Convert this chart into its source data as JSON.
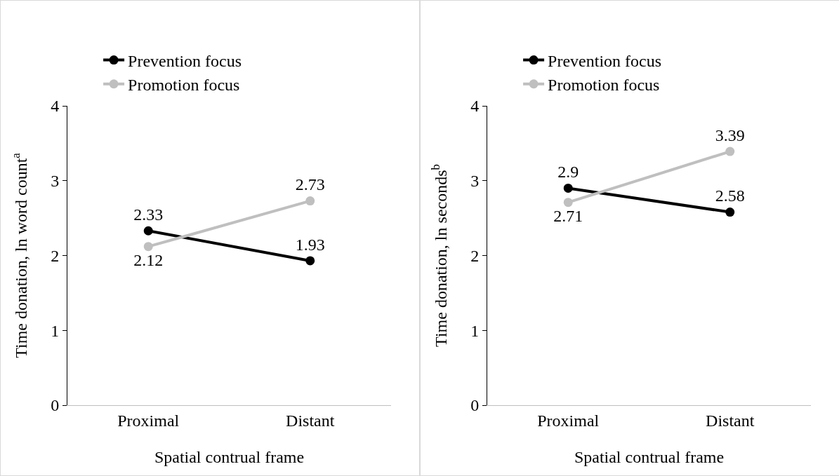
{
  "chart_data": [
    {
      "type": "line",
      "categories": [
        "Proximal",
        "Distant"
      ],
      "xlabel": "Spatial contrual frame",
      "ylabel": "Time donation, ln word count$^{a}$",
      "ylim": [
        0,
        4
      ],
      "yticks": [
        0,
        1,
        2,
        3,
        4
      ],
      "grid": false,
      "legend": "top",
      "marker": "circle",
      "data_labels": true,
      "series": [
        {
          "name": "Prevention focus",
          "color": "#000000",
          "values": [
            2.33,
            1.93
          ]
        },
        {
          "name": "Promotion focus",
          "color": "#bfbfbf",
          "values": [
            2.12,
            2.73
          ]
        }
      ]
    },
    {
      "type": "line",
      "categories": [
        "Proximal",
        "Distant"
      ],
      "xlabel": "Spatial contrual frame",
      "ylabel": "Time donation, ln seconds$^{b}$",
      "ylim": [
        0,
        4
      ],
      "yticks": [
        0,
        1,
        2,
        3,
        4
      ],
      "grid": false,
      "legend": "top",
      "marker": "circle",
      "data_labels": true,
      "series": [
        {
          "name": "Prevention focus",
          "color": "#000000",
          "values": [
            2.9,
            2.58
          ]
        },
        {
          "name": "Promotion focus",
          "color": "#bfbfbf",
          "values": [
            2.71,
            3.39
          ]
        }
      ]
    }
  ]
}
